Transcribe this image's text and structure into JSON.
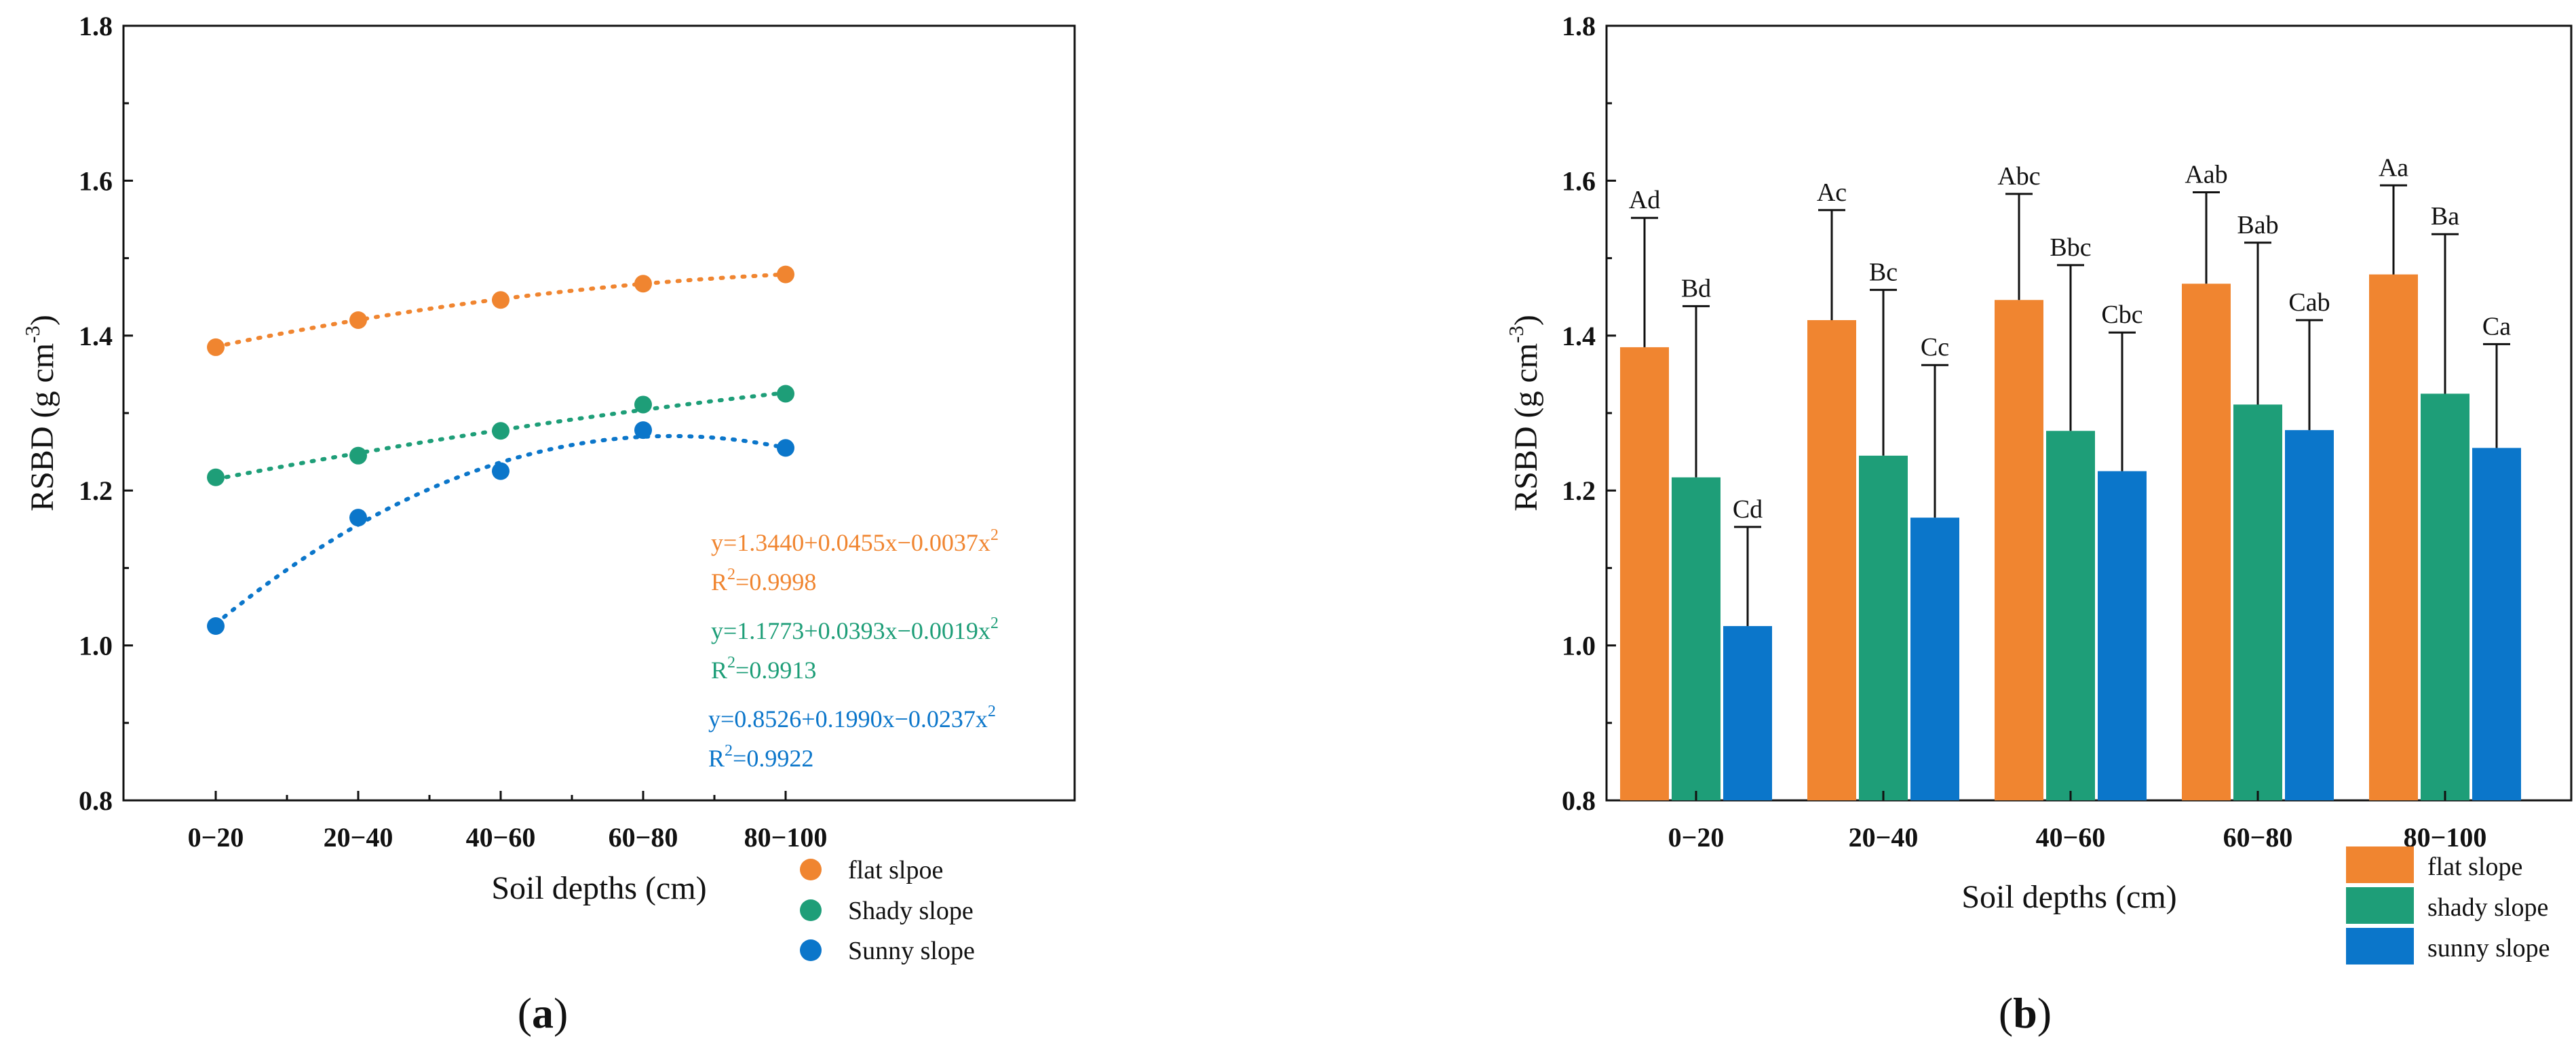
{
  "colors": {
    "flat": "#F08530",
    "shady": "#1E9E78",
    "sunny": "#0B76CA",
    "axis": "#111111"
  },
  "chart_data": [
    {
      "panel": "a",
      "panel_label": "a",
      "type": "scatter",
      "title": "",
      "xlabel": "Soil depths (cm)",
      "ylabel_main": "RSBD (g cm",
      "ylabel_sup": "-3",
      "ylabel_close": ")",
      "categories": [
        "0−20",
        "20−40",
        "40−60",
        "60−80",
        "80−100"
      ],
      "ylim": [
        0.8,
        1.8
      ],
      "yticks": [
        "0.8",
        "1.0",
        "1.2",
        "1.4",
        "1.6",
        "1.8"
      ],
      "legend_position": "bottom-right outside",
      "series": [
        {
          "name": "flat slpoe",
          "key": "flat",
          "values": [
            1.385,
            1.42,
            1.446,
            1.467,
            1.479
          ],
          "fit": [
            1.344,
            0.0455,
            -0.0037
          ]
        },
        {
          "name": "Shady slope",
          "key": "shady",
          "values": [
            1.217,
            1.245,
            1.277,
            1.311,
            1.325
          ],
          "fit": [
            1.1773,
            0.0393,
            -0.0019
          ]
        },
        {
          "name": "Sunny slope",
          "key": "sunny",
          "values": [
            1.025,
            1.165,
            1.225,
            1.278,
            1.255
          ],
          "fit": [
            0.8526,
            0.199,
            -0.0237
          ]
        }
      ],
      "annotations": [
        {
          "key": "flat",
          "eq": "y=1.3440+0.0455x−0.0037x",
          "eq_sup": "2",
          "r2_pre": "R",
          "r2_sup": "2",
          "r2_post": "=0.9998"
        },
        {
          "key": "shady",
          "eq": "y=1.1773+0.0393x−0.0019x",
          "eq_sup": "2",
          "r2_pre": "R",
          "r2_sup": "2",
          "r2_post": "=0.9913"
        },
        {
          "key": "sunny",
          "eq": "y=0.8526+0.1990x−0.0237x",
          "eq_sup": "2",
          "r2_pre": "R",
          "r2_sup": "2",
          "r2_post": "=0.9922"
        }
      ]
    },
    {
      "panel": "b",
      "panel_label": "b",
      "type": "bar",
      "title": "",
      "xlabel": "Soil depths (cm)",
      "ylabel_main": "RSBD (g cm",
      "ylabel_sup": "-3",
      "ylabel_close": ")",
      "categories": [
        "0−20",
        "20−40",
        "40−60",
        "60−80",
        "80−100"
      ],
      "ylim": [
        0.8,
        1.8
      ],
      "yticks": [
        "0.8",
        "1.0",
        "1.2",
        "1.4",
        "1.6",
        "1.8"
      ],
      "legend_position": "bottom-right outside",
      "series": [
        {
          "name": "flat slope",
          "key": "flat",
          "values": [
            1.385,
            1.42,
            1.446,
            1.467,
            1.479
          ],
          "errors": [
            0.167,
            0.142,
            0.137,
            0.118,
            0.115
          ],
          "labels": [
            "Ad",
            "Ac",
            "Abc",
            "Aab",
            "Aa"
          ]
        },
        {
          "name": "shady slope",
          "key": "shady",
          "values": [
            1.217,
            1.245,
            1.277,
            1.311,
            1.325
          ],
          "errors": [
            0.221,
            0.214,
            0.214,
            0.209,
            0.206
          ],
          "labels": [
            "Bd",
            "Bc",
            "Bbc",
            "Bab",
            "Ba"
          ]
        },
        {
          "name": "sunny slope",
          "key": "sunny",
          "values": [
            1.025,
            1.165,
            1.225,
            1.278,
            1.255
          ],
          "errors": [
            0.128,
            0.197,
            0.179,
            0.142,
            0.134
          ],
          "labels": [
            "Cd",
            "Cc",
            "Cbc",
            "Cab",
            "Ca"
          ]
        }
      ]
    }
  ]
}
